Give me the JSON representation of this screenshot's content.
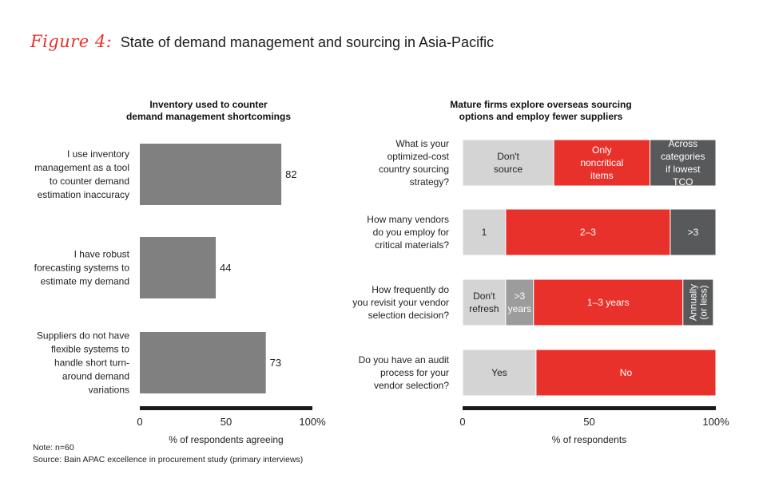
{
  "header": {
    "figure_label": "Figure 4:",
    "title": "State of demand management and sourcing in Asia-Pacific"
  },
  "footer": {
    "note": "Note: n=60",
    "source": "Source: Bain APAC excellence in procurement study (primary interviews)"
  },
  "colors": {
    "bar_gray": "#808080",
    "light_gray": "#d4d4d4",
    "red": "#e8312a",
    "dark_gray": "#58595b",
    "axis": "#1a1a1a",
    "accent": "#e8312a"
  },
  "chart_data": [
    {
      "type": "bar",
      "orientation": "horizontal",
      "title": "Inventory used to counter demand management shortcomings",
      "title_lines": [
        "Inventory used to counter",
        "demand management shortcomings"
      ],
      "categories": [
        "I use inventory management as a tool to counter demand estimation inaccuracy",
        "I have robust forecasting systems to estimate my demand",
        "Suppliers do not have flexible systems to handle short turn-around demand variations"
      ],
      "category_lines": [
        [
          "I use inventory",
          "management as a tool",
          "to counter demand",
          "estimation inaccuracy"
        ],
        [
          "I have robust",
          "forecasting systems to",
          "estimate my demand"
        ],
        [
          "Suppliers do not have",
          "flexible systems to",
          "handle short turn-",
          "around demand",
          "variations"
        ]
      ],
      "values": [
        82,
        44,
        73
      ],
      "xlim": [
        0,
        100
      ],
      "xticks": [
        "0",
        "50",
        "100%"
      ],
      "xlabel": "% of respondents agreeing"
    },
    {
      "type": "bar",
      "orientation": "horizontal",
      "stacked": true,
      "title": "Mature firms explore overseas sourcing options and employ fewer suppliers",
      "title_lines": [
        "Mature firms explore overseas sourcing",
        "options and employ fewer suppliers"
      ],
      "questions": [
        {
          "label": "What is your optimized-cost country sourcing strategy?",
          "label_lines": [
            "What is your",
            "optimized-cost",
            "country sourcing",
            "strategy?"
          ],
          "segments": [
            {
              "label": "Don't source",
              "lines": [
                "Don't",
                "source"
              ],
              "value": 36,
              "color": "light"
            },
            {
              "label": "Only noncritical items",
              "lines": [
                "Only",
                "noncritical",
                "items"
              ],
              "value": 38,
              "color": "red"
            },
            {
              "label": "Across categories if lowest TCO",
              "lines": [
                "Across",
                "categories",
                "if lowest",
                "TCO"
              ],
              "value": 26,
              "color": "dark"
            }
          ]
        },
        {
          "label": "How many vendors do you employ for critical materials?",
          "label_lines": [
            "How many vendors",
            "do you employ for",
            "critical materials?"
          ],
          "segments": [
            {
              "label": "1",
              "lines": [
                "1"
              ],
              "value": 17,
              "color": "light"
            },
            {
              "label": "2–3",
              "lines": [
                "2–3"
              ],
              "value": 65,
              "color": "red"
            },
            {
              "label": ">3",
              "lines": [
                ">3"
              ],
              "value": 18,
              "color": "dark"
            }
          ]
        },
        {
          "label": "How frequently do you revisit your vendor selection decision?",
          "label_lines": [
            "How frequently do",
            "you revisit your vendor",
            "selection decision?"
          ],
          "segments": [
            {
              "label": "Don't refresh",
              "lines": [
                "Don't",
                "refresh"
              ],
              "value": 17,
              "color": "light"
            },
            {
              "label": ">3 years",
              "lines": [
                ">3",
                "years"
              ],
              "value": 11,
              "color": "midgray"
            },
            {
              "label": "1–3 years",
              "lines": [
                "1–3 years"
              ],
              "value": 59,
              "color": "red"
            },
            {
              "label": "Annually (or less)",
              "lines": [
                "Annually",
                "(or less)"
              ],
              "value": 12,
              "color": "dark",
              "rotated": true
            }
          ]
        },
        {
          "label": "Do you have an audit process for your vendor selection?",
          "label_lines": [
            "Do you have an audit",
            "process for your",
            "vendor selection?"
          ],
          "segments": [
            {
              "label": "Yes",
              "lines": [
                "Yes"
              ],
              "value": 29,
              "color": "light"
            },
            {
              "label": "No",
              "lines": [
                "No"
              ],
              "value": 71,
              "color": "red"
            }
          ]
        }
      ],
      "xlim": [
        0,
        100
      ],
      "xticks": [
        "0",
        "50",
        "100%"
      ],
      "xlabel": "% of respondents"
    }
  ]
}
